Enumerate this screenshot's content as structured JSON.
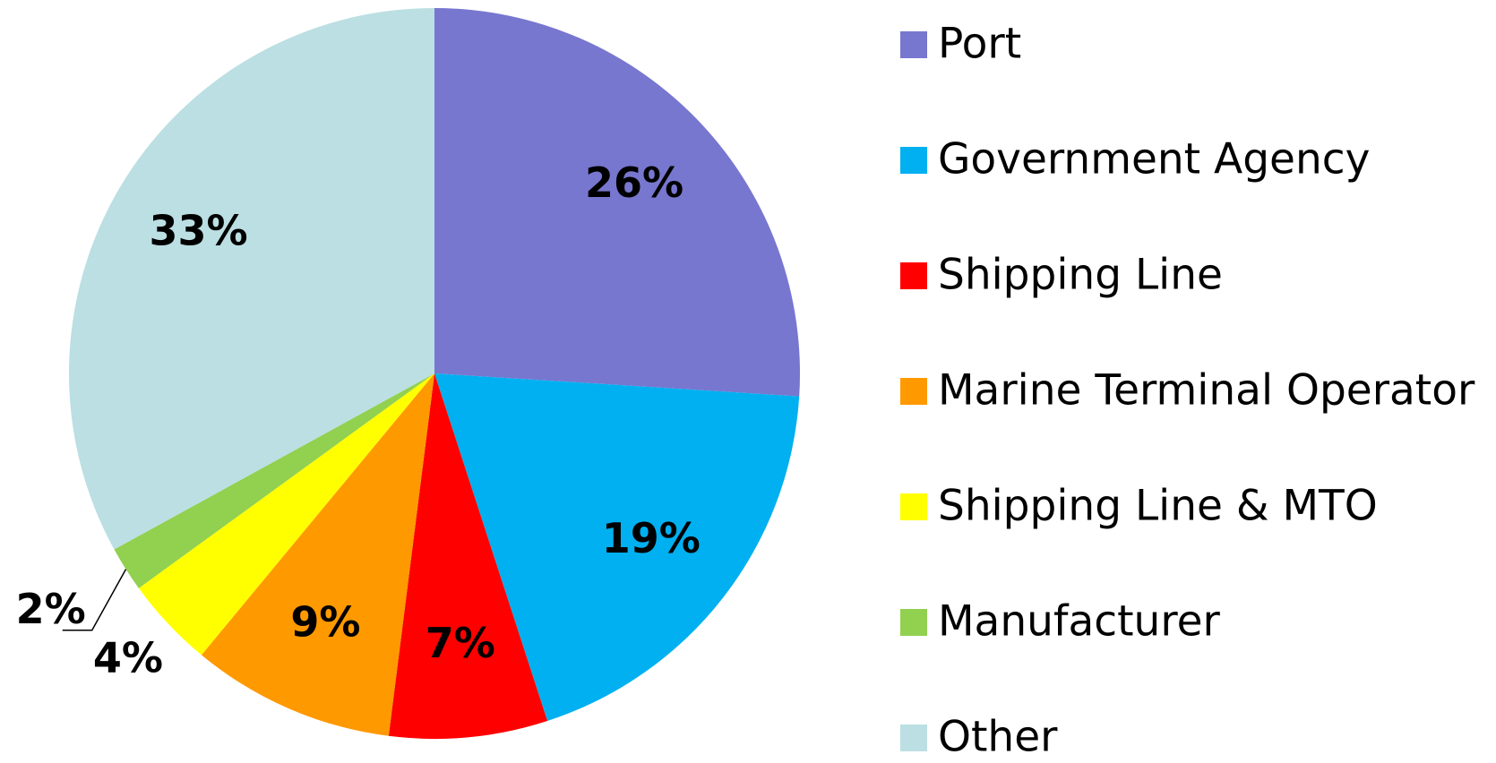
{
  "chart_data": {
    "type": "pie",
    "categories": [
      "Port",
      "Government Agency",
      "Shipping Line",
      "Marine Terminal Operator",
      "Shipping Line & MTO",
      "Manufacturer",
      "Other"
    ],
    "values": [
      26,
      19,
      7,
      9,
      4,
      2,
      33
    ],
    "value_labels": [
      "26%",
      "19%",
      "7%",
      "9%",
      "4%",
      "2%",
      "33%"
    ],
    "colors": [
      "#7777d0",
      "#00b0f0",
      "#ff0000",
      "#ff9900",
      "#ffff00",
      "#92d050",
      "#bbdfe3"
    ],
    "legend": "right"
  }
}
